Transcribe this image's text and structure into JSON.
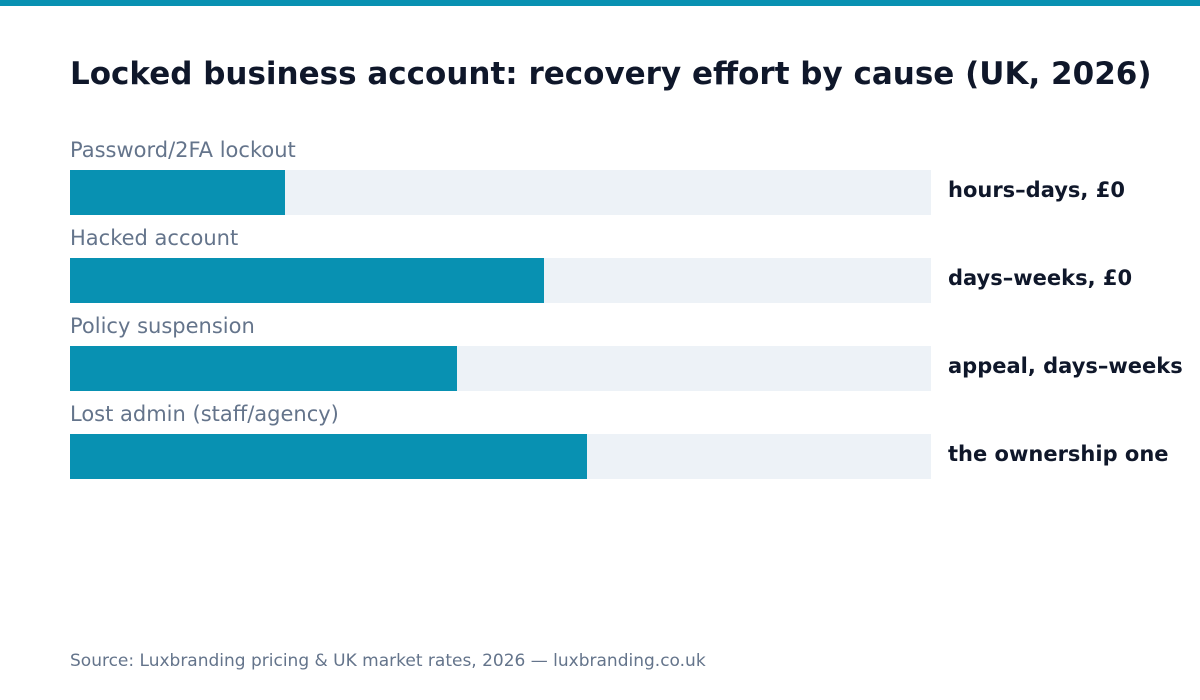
{
  "colors": {
    "accent": "#0891b2",
    "track": "#edf2f7",
    "title": "#0f172a",
    "muted": "#64748b"
  },
  "chart_data": {
    "type": "bar",
    "orientation": "horizontal",
    "title": "Locked business account: recovery effort by cause (UK, 2026)",
    "xlabel": "",
    "ylabel": "",
    "xlim": [
      0,
      100
    ],
    "grid": false,
    "legend": "none",
    "categories": [
      "Password/2FA lockout",
      "Hacked account",
      "Policy suspension",
      "Lost admin (staff/agency)"
    ],
    "values": [
      25,
      55,
      45,
      60
    ],
    "value_labels": [
      "hours–days, £0",
      "days–weeks, £0",
      "appeal, days–weeks",
      "the ownership one"
    ]
  },
  "footer": {
    "source": "Source: Luxbranding pricing & UK market rates, 2026 — luxbranding.co.uk"
  }
}
